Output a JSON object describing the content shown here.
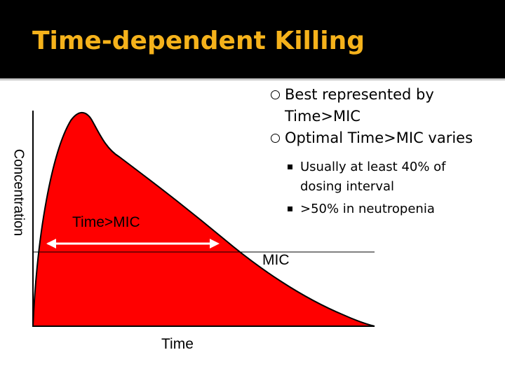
{
  "slide": {
    "title": "Time-dependent Killing",
    "bullets": [
      {
        "text": "Best represented by Time>MIC",
        "level": 1
      },
      {
        "text": "Optimal Time>MIC varies",
        "level": 1
      },
      {
        "text": "Usually at least 40% of dosing interval",
        "level": 2
      },
      {
        "text": ">50% in neutropenia",
        "level": 2
      }
    ]
  },
  "diagram": {
    "y_axis_label": "Concentration",
    "x_axis_label": "Time",
    "threshold_label": "MIC",
    "interval_label": "Time>MIC",
    "colors": {
      "curve_fill": "#ff0000",
      "title": "#f5b21b",
      "header_bg": "#000000"
    }
  }
}
